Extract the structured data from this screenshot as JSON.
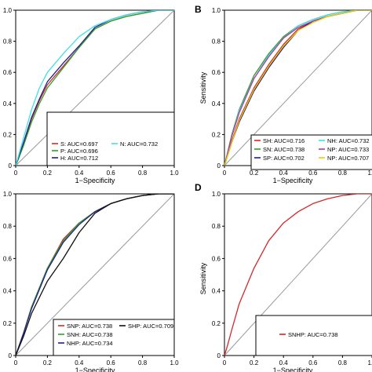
{
  "chart_data": [
    {
      "type": "line",
      "panel_label": "",
      "xlabel": "1−Specificity",
      "ylabel": "",
      "xlim": [
        0,
        1
      ],
      "ylim": [
        0,
        1
      ],
      "xticks": [
        "0",
        "0.2",
        "0.4",
        "0.6",
        "0.8",
        "1.0"
      ],
      "yticks": [
        "0",
        "0.2",
        "0.4",
        "0.6",
        "0.8",
        "1.0"
      ],
      "grid": false,
      "legend_position": "bottom-right",
      "reference_line": true,
      "series": [
        {
          "name": "S: AUC=0.697",
          "color": "#d62728",
          "x": [
            0,
            0.02,
            0.05,
            0.1,
            0.15,
            0.2,
            0.3,
            0.4,
            0.5,
            0.6,
            0.7,
            0.8,
            0.9,
            1.0
          ],
          "y": [
            0,
            0.05,
            0.14,
            0.3,
            0.42,
            0.52,
            0.64,
            0.76,
            0.88,
            0.93,
            0.96,
            0.98,
            1.0,
            1.0
          ]
        },
        {
          "name": "P: AUC=0.696",
          "color": "#2ca02c",
          "x": [
            0,
            0.02,
            0.05,
            0.1,
            0.15,
            0.2,
            0.3,
            0.4,
            0.5,
            0.6,
            0.7,
            0.8,
            0.9,
            1.0
          ],
          "y": [
            0,
            0.05,
            0.13,
            0.28,
            0.4,
            0.5,
            0.63,
            0.76,
            0.88,
            0.93,
            0.96,
            0.98,
            1.0,
            1.0
          ]
        },
        {
          "name": "H: AUC=0.712",
          "color": "#1f1f8f",
          "x": [
            0,
            0.02,
            0.05,
            0.1,
            0.15,
            0.2,
            0.3,
            0.4,
            0.5,
            0.6,
            0.7,
            0.8,
            0.9,
            1.0
          ],
          "y": [
            0,
            0.06,
            0.15,
            0.31,
            0.43,
            0.54,
            0.66,
            0.77,
            0.89,
            0.94,
            0.97,
            0.99,
            1.0,
            1.0
          ]
        },
        {
          "name": "N: AUC=0.732",
          "color": "#40e0e8",
          "x": [
            0,
            0.02,
            0.05,
            0.1,
            0.15,
            0.2,
            0.3,
            0.4,
            0.5,
            0.6,
            0.7,
            0.8,
            0.9,
            1.0
          ],
          "y": [
            0,
            0.07,
            0.18,
            0.36,
            0.5,
            0.6,
            0.72,
            0.83,
            0.9,
            0.94,
            0.97,
            0.99,
            1.0,
            1.0
          ]
        }
      ]
    },
    {
      "type": "line",
      "panel_label": "B",
      "xlabel": "1−Specificity",
      "ylabel": "Sensitivity",
      "xlim": [
        0,
        1
      ],
      "ylim": [
        0,
        1
      ],
      "xticks": [
        "0",
        "0.2",
        "0.4",
        "0.6",
        "0.8",
        "1.0"
      ],
      "yticks": [
        "0",
        "0.2",
        "0.4",
        "0.6",
        "0.8",
        "1.0"
      ],
      "grid": false,
      "legend_position": "bottom-right",
      "reference_line": true,
      "series": [
        {
          "name": "SH: AUC=0.716",
          "color": "#d62728",
          "x": [
            0,
            0.05,
            0.1,
            0.2,
            0.3,
            0.4,
            0.5,
            0.6,
            0.7,
            0.8,
            0.9,
            1.0
          ],
          "y": [
            0,
            0.16,
            0.3,
            0.5,
            0.65,
            0.78,
            0.88,
            0.93,
            0.96,
            0.98,
            1.0,
            1.0
          ]
        },
        {
          "name": "SN: AUC=0.738",
          "color": "#2ca02c",
          "x": [
            0,
            0.05,
            0.1,
            0.2,
            0.3,
            0.4,
            0.5,
            0.6,
            0.7,
            0.8,
            0.9,
            1.0
          ],
          "y": [
            0,
            0.2,
            0.36,
            0.58,
            0.72,
            0.83,
            0.9,
            0.94,
            0.97,
            0.99,
            1.0,
            1.0
          ]
        },
        {
          "name": "SP: AUC=0.702",
          "color": "#1f1f8f",
          "x": [
            0,
            0.05,
            0.1,
            0.2,
            0.3,
            0.4,
            0.5,
            0.6,
            0.7,
            0.8,
            0.9,
            1.0
          ],
          "y": [
            0,
            0.15,
            0.28,
            0.48,
            0.63,
            0.76,
            0.87,
            0.93,
            0.96,
            0.98,
            1.0,
            1.0
          ]
        },
        {
          "name": "NH: AUC=0.732",
          "color": "#40e0e8",
          "x": [
            0,
            0.05,
            0.1,
            0.2,
            0.3,
            0.4,
            0.5,
            0.6,
            0.7,
            0.8,
            0.9,
            1.0
          ],
          "y": [
            0,
            0.19,
            0.35,
            0.56,
            0.71,
            0.82,
            0.9,
            0.94,
            0.97,
            0.99,
            1.0,
            1.0
          ]
        },
        {
          "name": "NP: AUC=0.733",
          "color": "#b03aa8",
          "x": [
            0,
            0.05,
            0.1,
            0.2,
            0.3,
            0.4,
            0.5,
            0.6,
            0.7,
            0.8,
            0.9,
            1.0
          ],
          "y": [
            0,
            0.19,
            0.34,
            0.56,
            0.7,
            0.82,
            0.89,
            0.93,
            0.96,
            0.98,
            1.0,
            1.0
          ]
        },
        {
          "name": "NP: AUC=0.707",
          "color": "#e8d000",
          "x": [
            0,
            0.05,
            0.1,
            0.2,
            0.3,
            0.4,
            0.5,
            0.6,
            0.7,
            0.8,
            0.9,
            1.0
          ],
          "y": [
            0,
            0.15,
            0.29,
            0.49,
            0.64,
            0.77,
            0.87,
            0.92,
            0.96,
            0.98,
            1.0,
            1.0
          ]
        }
      ]
    },
    {
      "type": "line",
      "panel_label": "",
      "xlabel": "1−Specificity",
      "ylabel": "",
      "xlim": [
        0,
        1
      ],
      "ylim": [
        0,
        1
      ],
      "xticks": [
        "0",
        "0.2",
        "0.4",
        "0.6",
        "0.8",
        "1.0"
      ],
      "yticks": [
        "0",
        "0.2",
        "0.4",
        "0.6",
        "0.8",
        "1.0"
      ],
      "grid": false,
      "legend_position": "bottom-right",
      "reference_line": true,
      "series": [
        {
          "name": "SNP: AUC=0.738",
          "color": "#d62728",
          "x": [
            0,
            0.05,
            0.1,
            0.2,
            0.3,
            0.4,
            0.5,
            0.6,
            0.7,
            0.8,
            0.9,
            1.0
          ],
          "y": [
            0,
            0.14,
            0.3,
            0.54,
            0.72,
            0.82,
            0.89,
            0.94,
            0.97,
            0.99,
            1.0,
            1.0
          ]
        },
        {
          "name": "SNH: AUC=0.738",
          "color": "#2ca02c",
          "x": [
            0,
            0.05,
            0.1,
            0.2,
            0.3,
            0.4,
            0.5,
            0.6,
            0.7,
            0.8,
            0.9,
            1.0
          ],
          "y": [
            0,
            0.14,
            0.3,
            0.54,
            0.71,
            0.82,
            0.89,
            0.94,
            0.97,
            0.99,
            1.0,
            1.0
          ]
        },
        {
          "name": "NHP: AUC=0.734",
          "color": "#1f1f8f",
          "x": [
            0,
            0.05,
            0.1,
            0.2,
            0.3,
            0.4,
            0.5,
            0.6,
            0.7,
            0.8,
            0.9,
            1.0
          ],
          "y": [
            0,
            0.14,
            0.29,
            0.53,
            0.7,
            0.81,
            0.89,
            0.94,
            0.97,
            0.99,
            1.0,
            1.0
          ]
        },
        {
          "name": "SHP: AUC=0.709",
          "color": "#111111",
          "x": [
            0,
            0.05,
            0.1,
            0.2,
            0.3,
            0.4,
            0.5,
            0.6,
            0.7,
            0.8,
            0.9,
            1.0
          ],
          "y": [
            0,
            0.12,
            0.26,
            0.46,
            0.6,
            0.76,
            0.88,
            0.94,
            0.97,
            0.99,
            1.0,
            1.0
          ]
        }
      ]
    },
    {
      "type": "line",
      "panel_label": "D",
      "xlabel": "1−Specificity",
      "ylabel": "Sensitivity",
      "xlim": [
        0,
        1
      ],
      "ylim": [
        0,
        1
      ],
      "xticks": [
        "0",
        "0.2",
        "0.4",
        "0.6",
        "0.8",
        "1.0"
      ],
      "yticks": [
        "0",
        "0.2",
        "0.4",
        "0.6",
        "0.8",
        "1.0"
      ],
      "grid": false,
      "legend_position": "bottom-right",
      "reference_line": true,
      "series": [
        {
          "name": "SNHP: AUC=0.738",
          "color": "#d62728",
          "x": [
            0,
            0.02,
            0.05,
            0.1,
            0.2,
            0.3,
            0.4,
            0.5,
            0.6,
            0.7,
            0.8,
            0.9,
            1.0
          ],
          "y": [
            0,
            0.06,
            0.16,
            0.32,
            0.54,
            0.71,
            0.82,
            0.89,
            0.94,
            0.97,
            0.99,
            1.0,
            1.0
          ]
        }
      ]
    }
  ]
}
